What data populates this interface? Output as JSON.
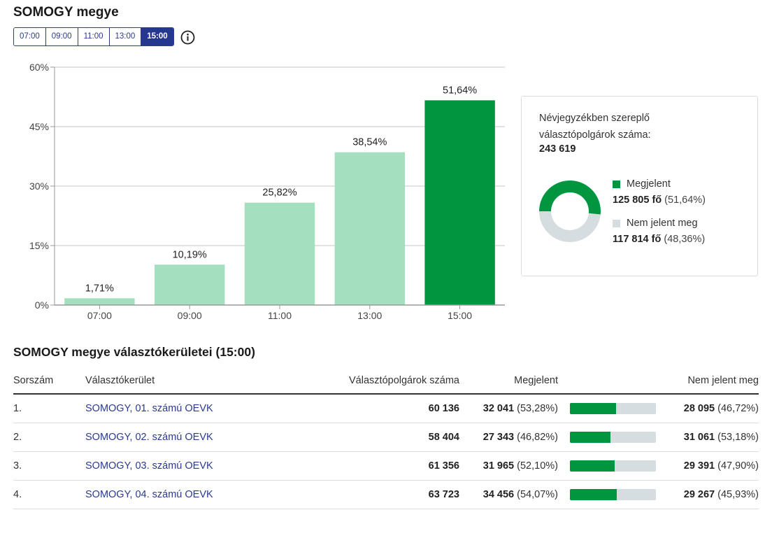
{
  "header": {
    "title": "SOMOGY megye"
  },
  "time_tabs": [
    {
      "label": "07:00",
      "active": false
    },
    {
      "label": "09:00",
      "active": false
    },
    {
      "label": "11:00",
      "active": false
    },
    {
      "label": "13:00",
      "active": false
    },
    {
      "label": "15:00",
      "active": true
    }
  ],
  "info_icon": "info-icon",
  "chart_data": {
    "type": "bar",
    "title": "",
    "xlabel": "",
    "ylabel": "",
    "categories": [
      "07:00",
      "09:00",
      "11:00",
      "13:00",
      "15:00"
    ],
    "values": [
      1.71,
      10.19,
      25.82,
      38.54,
      51.64
    ],
    "value_labels": [
      "1,71%",
      "10,19%",
      "25,82%",
      "38,54%",
      "51,64%"
    ],
    "ylim": [
      0,
      60
    ],
    "yticks": [
      0,
      15,
      30,
      45,
      60
    ],
    "ytick_labels": [
      "0%",
      "15%",
      "30%",
      "45%",
      "60%"
    ],
    "grid": true,
    "highlight_index": 4,
    "colors": {
      "bar": "#a4e0bf",
      "highlight": "#009640",
      "grid": "#d9d9d9",
      "axis": "#999999"
    }
  },
  "summary": {
    "label": "Névjegyzékben szereplő választópolgárok száma:",
    "total": "243 619",
    "present": {
      "label": "Megjelent",
      "count": "125 805 fő",
      "pct": "(51,64%)",
      "fraction": 0.5164,
      "color": "#009640"
    },
    "absent": {
      "label": "Nem jelent meg",
      "count": "117 814 fő",
      "pct": "(48,36%)",
      "fraction": 0.4836,
      "color": "#d6dde0"
    }
  },
  "districts": {
    "title": "SOMOGY megye választókerületei (15:00)",
    "columns": {
      "index": "Sorszám",
      "name": "Választókerület",
      "voters": "Választópolgárok száma",
      "present": "Megjelent",
      "absent": "Nem jelent meg"
    },
    "rows": [
      {
        "index": "1.",
        "name": "SOMOGY, 01. számú OEVK",
        "voters": "60 136",
        "present_count": "32 041",
        "present_pct": "(53,28%)",
        "present_fraction": 0.5328,
        "absent_count": "28 095",
        "absent_pct": "(46,72%)"
      },
      {
        "index": "2.",
        "name": "SOMOGY, 02. számú OEVK",
        "voters": "58 404",
        "present_count": "27 343",
        "present_pct": "(46,82%)",
        "present_fraction": 0.4682,
        "absent_count": "31 061",
        "absent_pct": "(53,18%)"
      },
      {
        "index": "3.",
        "name": "SOMOGY, 03. számú OEVK",
        "voters": "61 356",
        "present_count": "31 965",
        "present_pct": "(52,10%)",
        "present_fraction": 0.521,
        "absent_count": "29 391",
        "absent_pct": "(47,90%)"
      },
      {
        "index": "4.",
        "name": "SOMOGY, 04. számú OEVK",
        "voters": "63 723",
        "present_count": "34 456",
        "present_pct": "(54,07%)",
        "present_fraction": 0.5407,
        "absent_count": "29 267",
        "absent_pct": "(45,93%)"
      }
    ]
  }
}
